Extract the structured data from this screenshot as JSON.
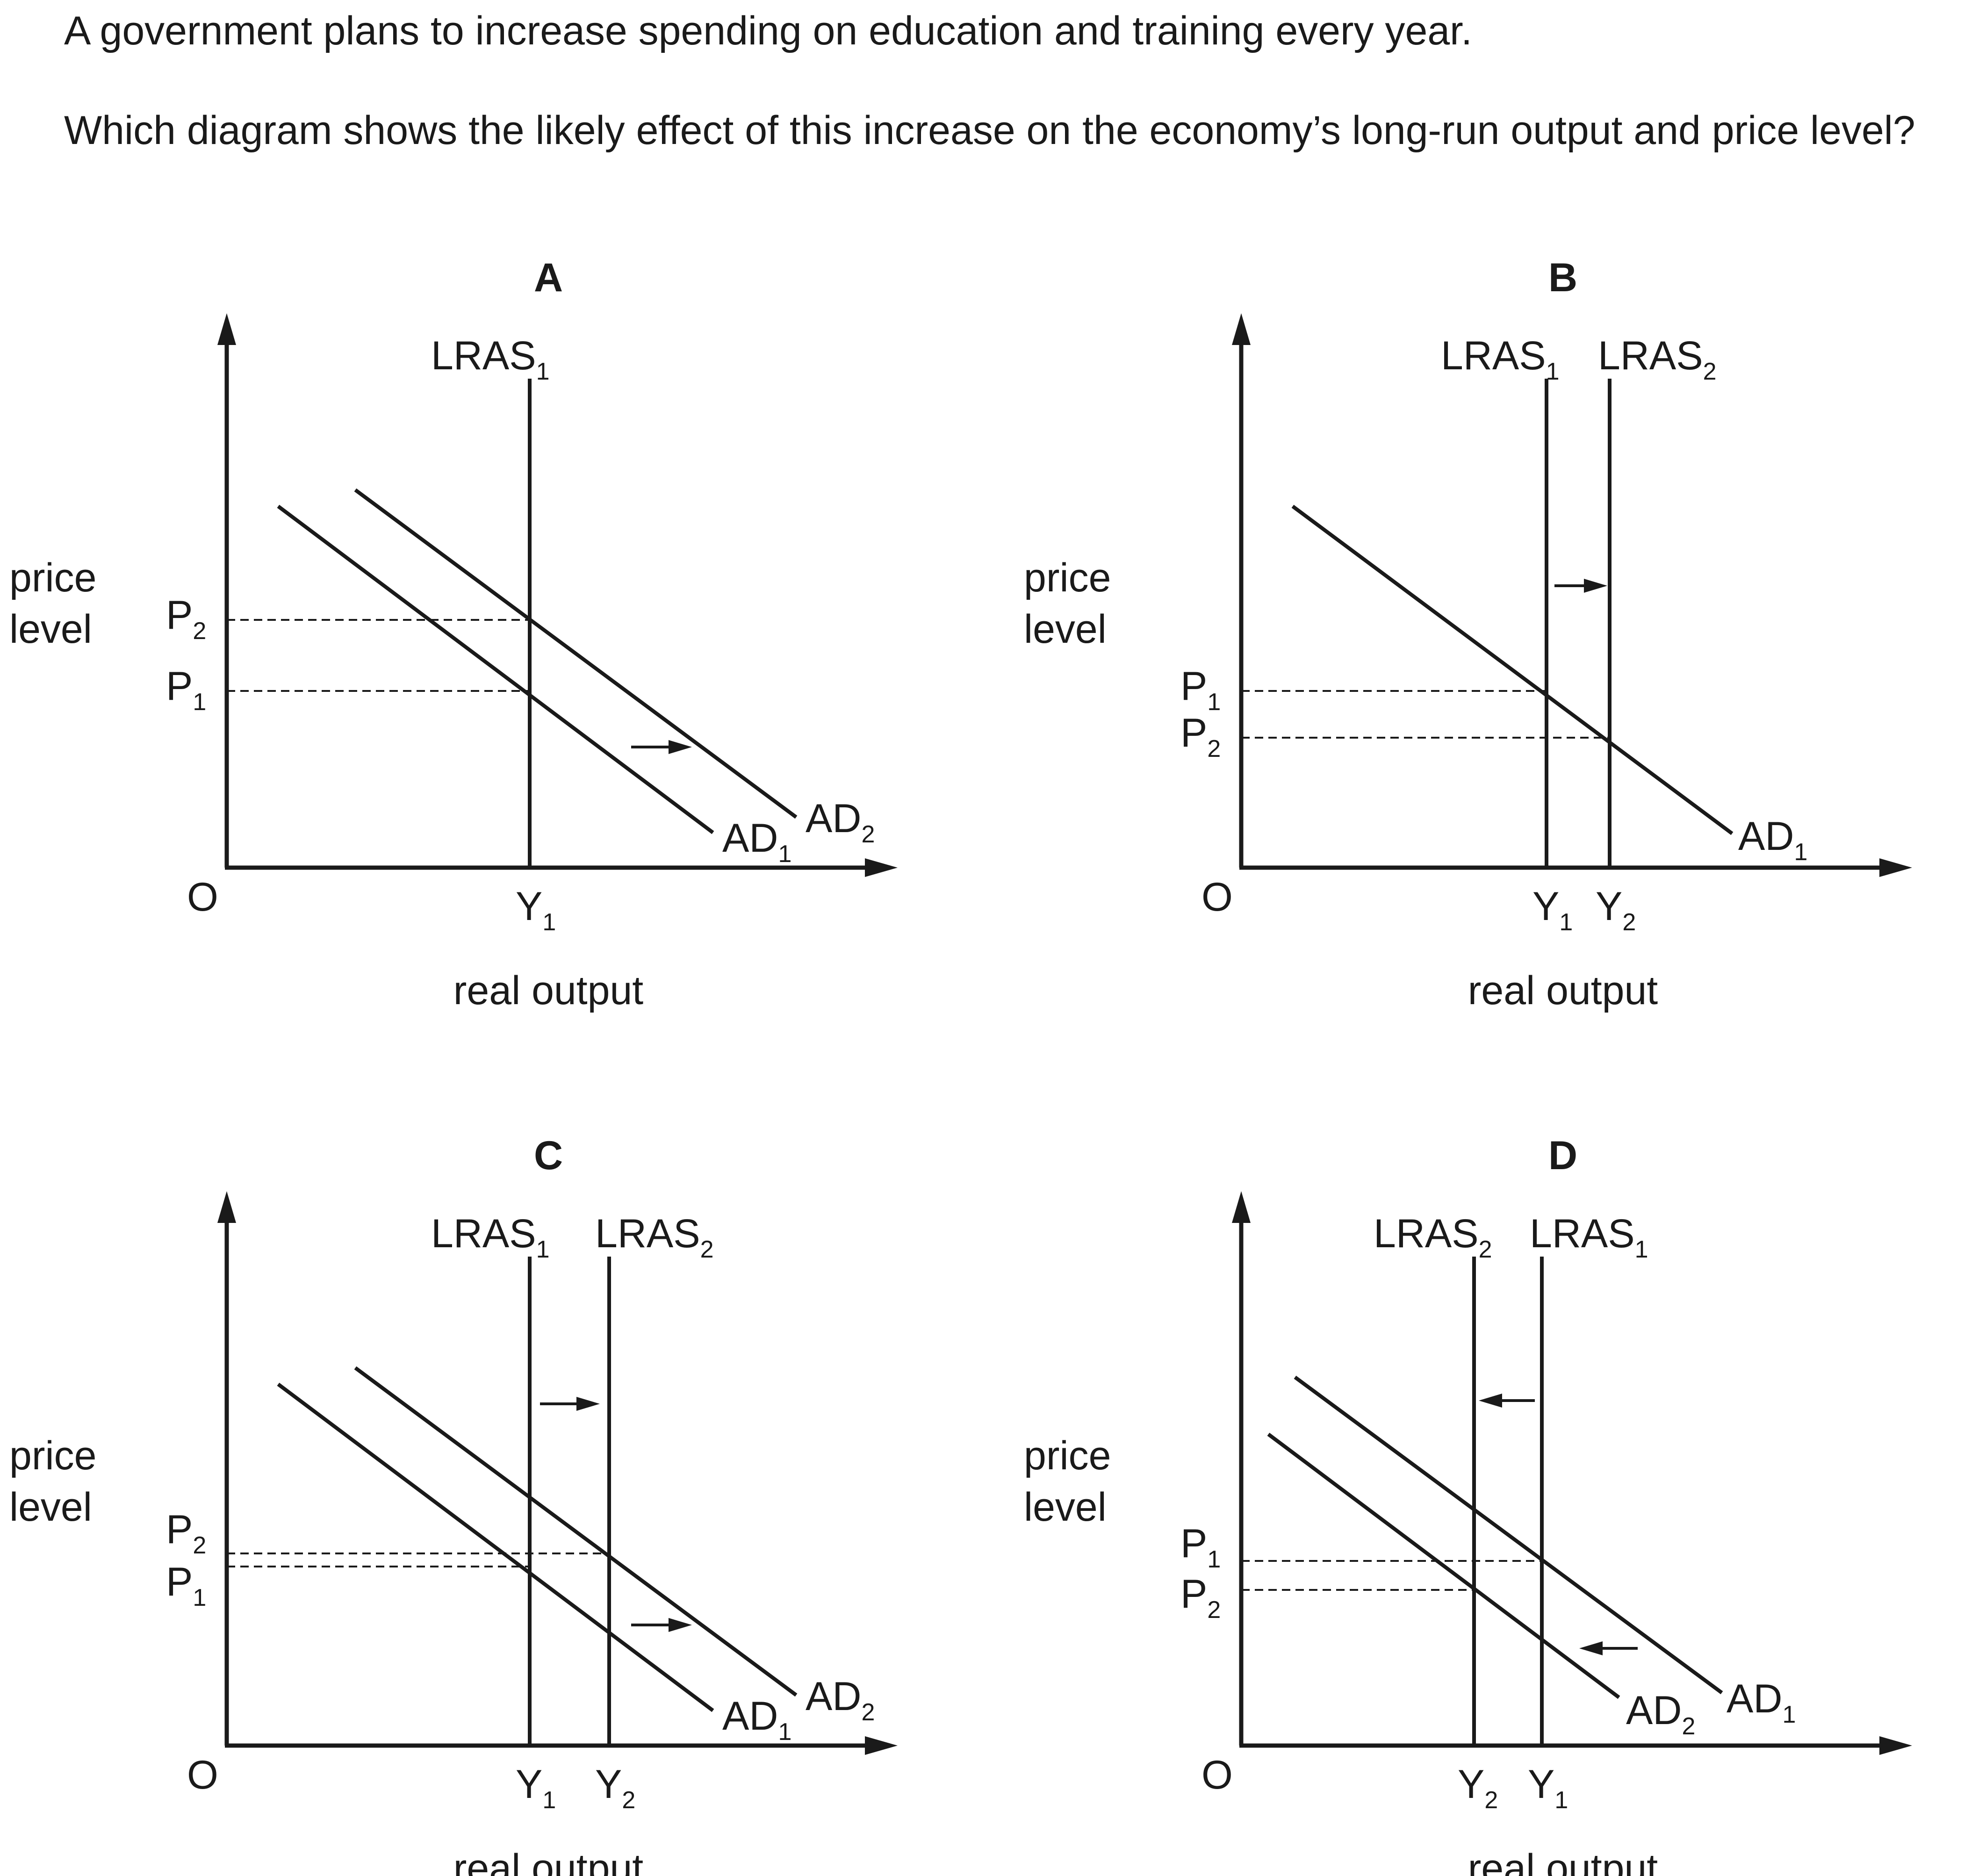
{
  "question": {
    "line1": "A government plans to increase spending on education and training every year.",
    "line2": "Which diagram shows the likely effect of this increase on the economy’s long-run output and price level?"
  },
  "axes": {
    "ylabel": [
      "price",
      "level"
    ],
    "xlabel": "real output",
    "origin": "O"
  },
  "diagrams": [
    {
      "id": "A",
      "lras": [
        {
          "base": "LRAS",
          "sub": "1"
        }
      ],
      "ad": [
        {
          "base": "AD",
          "sub": "1"
        },
        {
          "base": "AD",
          "sub": "2"
        }
      ],
      "p_labels": [
        {
          "base": "P",
          "sub": "2"
        },
        {
          "base": "P",
          "sub": "1"
        }
      ],
      "y_labels": [
        {
          "base": "Y",
          "sub": "1"
        }
      ],
      "shifts": [
        "AD right"
      ]
    },
    {
      "id": "B",
      "lras": [
        {
          "base": "LRAS",
          "sub": "1"
        },
        {
          "base": "LRAS",
          "sub": "2"
        }
      ],
      "ad": [
        {
          "base": "AD",
          "sub": "1"
        }
      ],
      "p_labels": [
        {
          "base": "P",
          "sub": "1"
        },
        {
          "base": "P",
          "sub": "2"
        }
      ],
      "y_labels": [
        {
          "base": "Y",
          "sub": "1"
        },
        {
          "base": "Y",
          "sub": "2"
        }
      ],
      "shifts": [
        "LRAS right"
      ]
    },
    {
      "id": "C",
      "lras": [
        {
          "base": "LRAS",
          "sub": "1"
        },
        {
          "base": "LRAS",
          "sub": "2"
        }
      ],
      "ad": [
        {
          "base": "AD",
          "sub": "1"
        },
        {
          "base": "AD",
          "sub": "2"
        }
      ],
      "p_labels": [
        {
          "base": "P",
          "sub": "2"
        },
        {
          "base": "P",
          "sub": "1"
        }
      ],
      "y_labels": [
        {
          "base": "Y",
          "sub": "1"
        },
        {
          "base": "Y",
          "sub": "2"
        }
      ],
      "shifts": [
        "LRAS right",
        "AD right"
      ]
    },
    {
      "id": "D",
      "lras": [
        {
          "base": "LRAS",
          "sub": "2"
        },
        {
          "base": "LRAS",
          "sub": "1"
        }
      ],
      "ad": [
        {
          "base": "AD",
          "sub": "2"
        },
        {
          "base": "AD",
          "sub": "1"
        }
      ],
      "p_labels": [
        {
          "base": "P",
          "sub": "1"
        },
        {
          "base": "P",
          "sub": "2"
        }
      ],
      "y_labels": [
        {
          "base": "Y",
          "sub": "2"
        },
        {
          "base": "Y",
          "sub": "1"
        }
      ],
      "shifts": [
        "LRAS left",
        "AD left"
      ]
    }
  ]
}
